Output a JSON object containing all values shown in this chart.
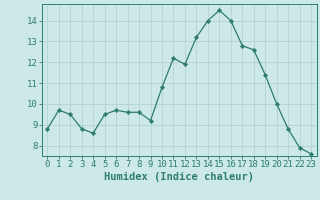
{
  "x": [
    0,
    1,
    2,
    3,
    4,
    5,
    6,
    7,
    8,
    9,
    10,
    11,
    12,
    13,
    14,
    15,
    16,
    17,
    18,
    19,
    20,
    21,
    22,
    23
  ],
  "y": [
    8.8,
    9.7,
    9.5,
    8.8,
    8.6,
    9.5,
    9.7,
    9.6,
    9.6,
    9.2,
    10.8,
    12.2,
    11.9,
    13.2,
    14.0,
    14.5,
    14.0,
    12.8,
    12.6,
    11.4,
    10.0,
    8.8,
    7.9,
    7.6
  ],
  "line_color": "#2e7d6e",
  "marker": "D",
  "marker_size": 2.2,
  "bg_color": "#cce8e8",
  "grid_color": "#b0cccc",
  "xlabel": "Humidex (Indice chaleur)",
  "xlim": [
    -0.5,
    23.5
  ],
  "ylim": [
    7.5,
    14.8
  ],
  "yticks": [
    8,
    9,
    10,
    11,
    12,
    13,
    14
  ],
  "xticks": [
    0,
    1,
    2,
    3,
    4,
    5,
    6,
    7,
    8,
    9,
    10,
    11,
    12,
    13,
    14,
    15,
    16,
    17,
    18,
    19,
    20,
    21,
    22,
    23
  ],
  "tick_color": "#2e7d6e",
  "axis_color": "#2e7d6e",
  "xlabel_fontsize": 7.5,
  "tick_fontsize": 6.5
}
